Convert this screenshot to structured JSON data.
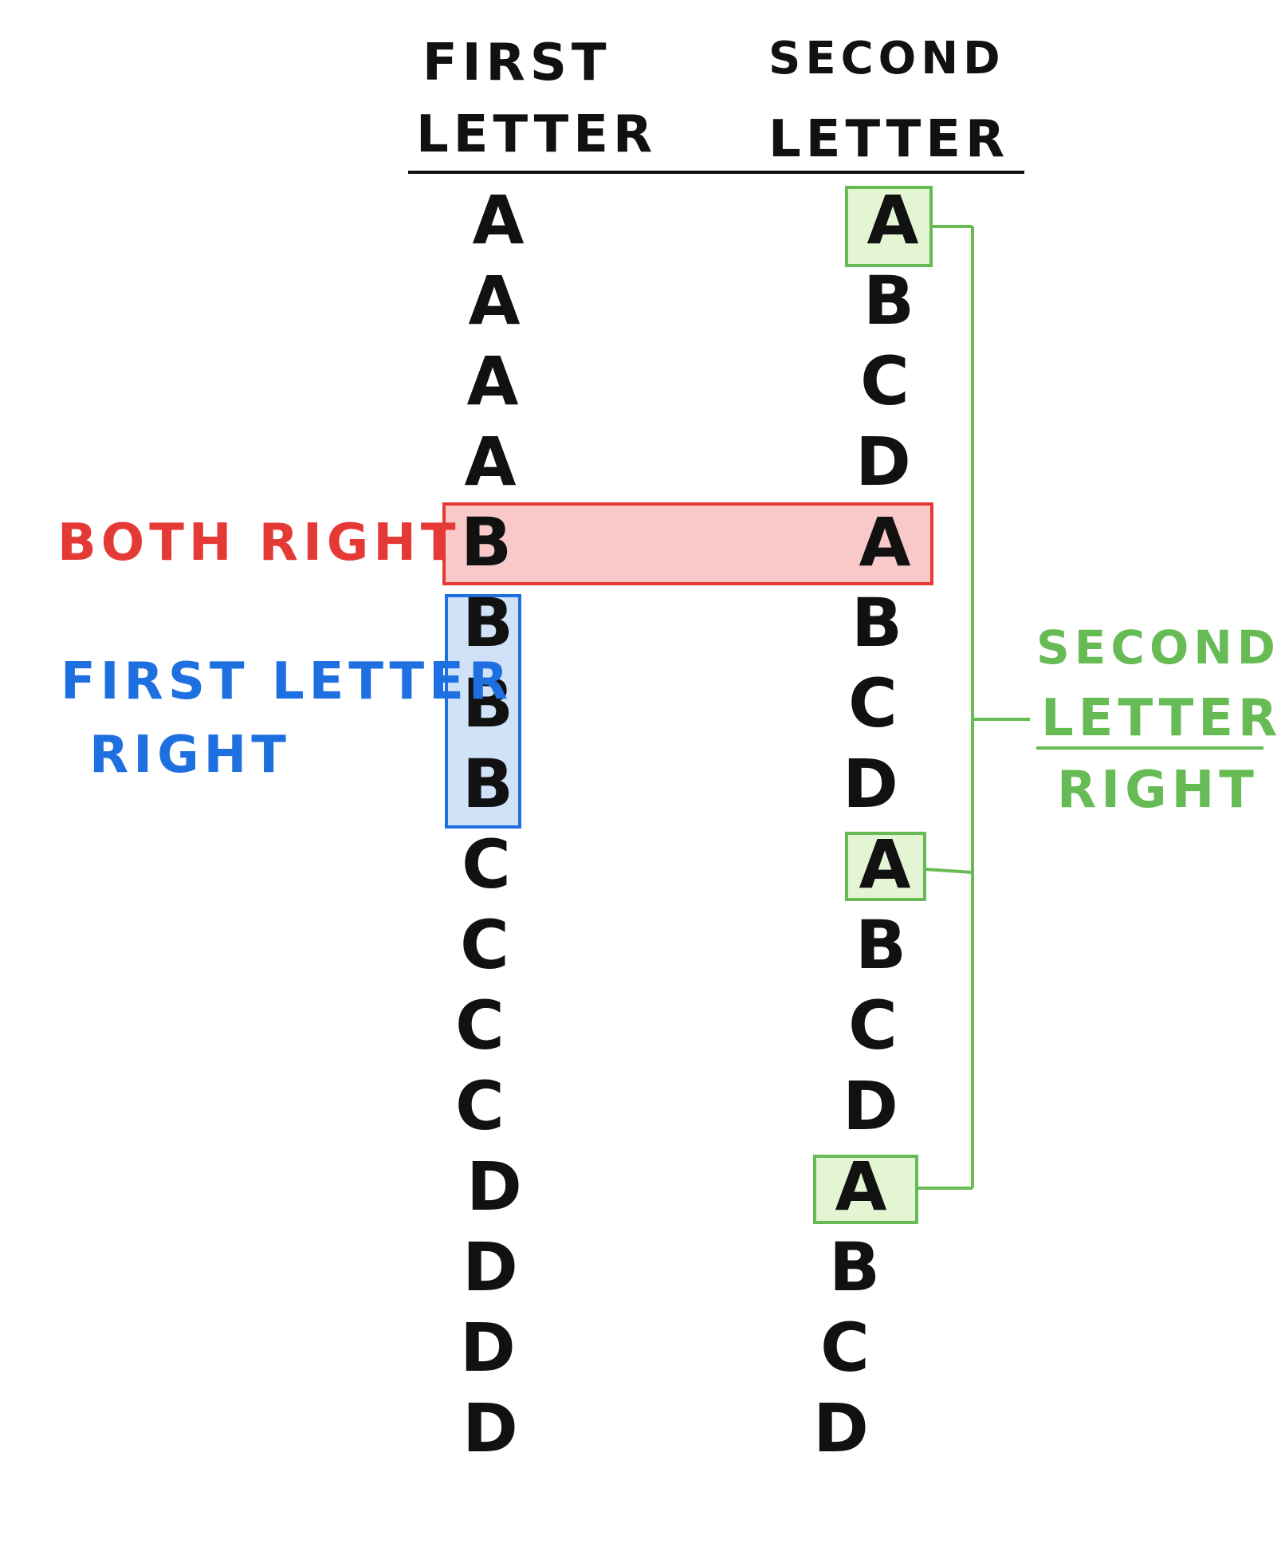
{
  "headers": {
    "first": [
      "FIRST",
      "LETTER"
    ],
    "second": [
      "SECOND",
      "LETTER"
    ]
  },
  "rows": [
    {
      "first": "A",
      "second": "A"
    },
    {
      "first": "A",
      "second": "B"
    },
    {
      "first": "A",
      "second": "C"
    },
    {
      "first": "A",
      "second": "D"
    },
    {
      "first": "B",
      "second": "A"
    },
    {
      "first": "B",
      "second": "B"
    },
    {
      "first": "B",
      "second": "C"
    },
    {
      "first": "B",
      "second": "D"
    },
    {
      "first": "C",
      "second": "A"
    },
    {
      "first": "C",
      "second": "B"
    },
    {
      "first": "C",
      "second": "C"
    },
    {
      "first": "C",
      "second": "D"
    },
    {
      "first": "D",
      "second": "A"
    },
    {
      "first": "D",
      "second": "B"
    },
    {
      "first": "D",
      "second": "C"
    },
    {
      "first": "D",
      "second": "D"
    }
  ],
  "annotations": {
    "both_right": {
      "lines": [
        "BOTH RIGHT"
      ],
      "row": 4
    },
    "first_letter_right": {
      "lines": [
        "FIRST LETTER",
        "RIGHT"
      ],
      "rows": [
        5,
        6,
        7
      ]
    },
    "second_letter_right": {
      "lines": [
        "SECOND",
        "LETTER",
        "RIGHT"
      ],
      "rows": [
        0,
        8,
        12
      ]
    }
  },
  "colors": {
    "ink": "#111111",
    "both_right": "#e53935",
    "both_right_fill": "#f9c9c9",
    "first_letter_right": "#1e6fe0",
    "first_letter_right_fill": "#cfe2f8",
    "second_letter_right": "#66bb55",
    "second_letter_right_fill": "#e3f5d3"
  }
}
